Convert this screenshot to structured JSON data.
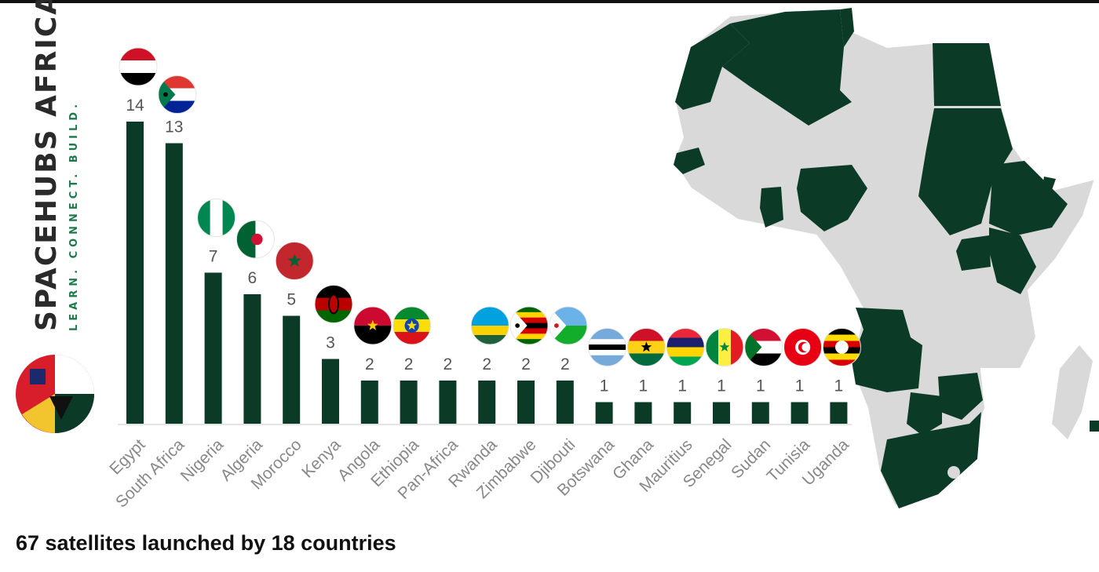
{
  "brand": {
    "name": "SPACEHUBS AFRICA",
    "tagline": "LEARN. CONNECT. BUILD."
  },
  "footer": {
    "text": "67 satellites launched by 18 countries"
  },
  "colors": {
    "bar": "#0b3a27",
    "map_highlight": "#0b3a27",
    "map_base": "#d9d9d9",
    "label": "#888888"
  },
  "chart_data": {
    "type": "bar",
    "title": "",
    "xlabel": "",
    "ylabel": "",
    "categories": [
      "Egypt",
      "South Africa",
      "Nigeria",
      "Algeria",
      "Morocco",
      "Kenya",
      "Angola",
      "Ethiopia",
      "Pan-Africa",
      "Rwanda",
      "Zimbabwe",
      "Djibouti",
      "Botswana",
      "Ghana",
      "Mauritius",
      "Senegal",
      "Sudan",
      "Tunisia",
      "Uganda"
    ],
    "values": [
      14,
      13,
      7,
      6,
      5,
      3,
      2,
      2,
      2,
      2,
      2,
      2,
      1,
      1,
      1,
      1,
      1,
      1,
      1
    ],
    "data_labels": [
      "14",
      "13",
      "7",
      "6",
      "5",
      "3",
      "2",
      "2",
      "2",
      "2",
      "2",
      "2",
      "1",
      "1",
      "1",
      "1",
      "1",
      "1",
      "1"
    ],
    "ylim": [
      0,
      14
    ],
    "grid": false,
    "legend": "none"
  },
  "flags": [
    "egypt-flag-icon",
    "south-africa-flag-icon",
    "nigeria-flag-icon",
    "algeria-flag-icon",
    "morocco-flag-icon",
    "kenya-flag-icon",
    "angola-flag-icon",
    "ethiopia-flag-icon",
    "",
    "rwanda-flag-icon",
    "zimbabwe-flag-icon",
    "djibouti-flag-icon",
    "botswana-flag-icon",
    "ghana-flag-icon",
    "mauritius-flag-icon",
    "senegal-flag-icon",
    "sudan-flag-icon",
    "tunisia-flag-icon",
    "uganda-flag-icon"
  ]
}
